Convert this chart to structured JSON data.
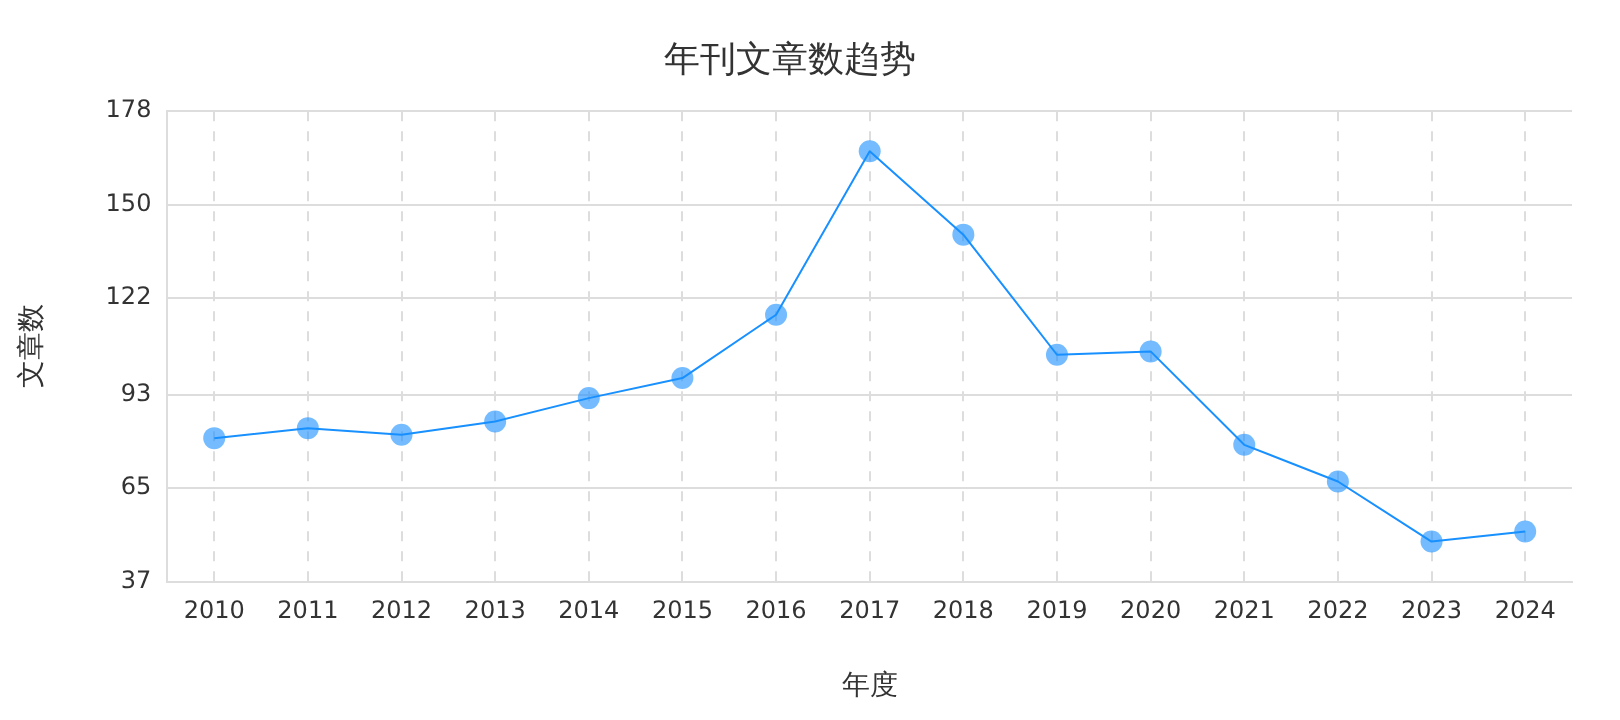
{
  "chart_data": {
    "type": "line",
    "title": "年刊文章数趋势",
    "xlabel": "年度",
    "ylabel": "文章数",
    "categories": [
      "2010",
      "2011",
      "2012",
      "2013",
      "2014",
      "2015",
      "2016",
      "2017",
      "2018",
      "2019",
      "2020",
      "2021",
      "2022",
      "2023",
      "2024"
    ],
    "series": [
      {
        "color": "#1890ff",
        "values": [
          80,
          83,
          81,
          85,
          92,
          98,
          117,
          166,
          141,
          105,
          106,
          78,
          67,
          49,
          52
        ]
      }
    ],
    "ylim": [
      37,
      178
    ],
    "yticks": [
      37,
      65,
      93,
      122,
      150,
      178
    ],
    "grid": true,
    "legend": false,
    "marker": "circle",
    "line_style": "solid"
  }
}
